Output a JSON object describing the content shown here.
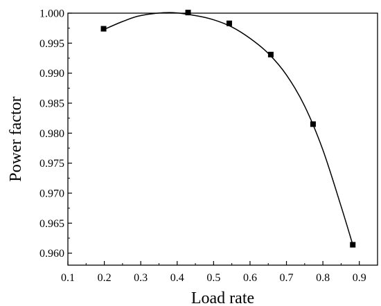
{
  "chart_data": {
    "type": "scatter",
    "title": "",
    "xlabel": "Load rate",
    "ylabel": "Power factor",
    "xlim": [
      0.1,
      0.95
    ],
    "ylim": [
      0.958,
      1.0
    ],
    "grid": false,
    "legend": "none",
    "x_ticks": [
      "0.1",
      "0.2",
      "0.3",
      "0.4",
      "0.5",
      "0.6",
      "0.7",
      "0.8",
      "0.9"
    ],
    "x_tick_values": [
      0.1,
      0.2,
      0.3,
      0.4,
      0.5,
      0.6,
      0.7,
      0.8,
      0.9
    ],
    "y_ticks": [
      "0.960",
      "0.965",
      "0.970",
      "0.975",
      "0.980",
      "0.985",
      "0.990",
      "0.995",
      "1.000"
    ],
    "y_tick_values": [
      0.96,
      0.965,
      0.97,
      0.975,
      0.98,
      0.985,
      0.99,
      0.995,
      1.0
    ],
    "series": [
      {
        "type": "scatter",
        "marker": "square",
        "color": "#000000",
        "points": [
          {
            "x": 0.198,
            "y": 0.9974
          },
          {
            "x": 0.43,
            "y": 1.0001
          },
          {
            "x": 0.543,
            "y": 0.9983
          },
          {
            "x": 0.657,
            "y": 0.9931
          },
          {
            "x": 0.773,
            "y": 0.9815
          },
          {
            "x": 0.882,
            "y": 0.9614
          }
        ]
      },
      {
        "type": "line",
        "style": "smooth-fit",
        "color": "#000000",
        "points": [
          {
            "x": 0.2,
            "y": 0.9973
          },
          {
            "x": 0.25,
            "y": 0.9986
          },
          {
            "x": 0.3,
            "y": 0.9996
          },
          {
            "x": 0.38,
            "y": 1.0001
          },
          {
            "x": 0.45,
            "y": 0.9996
          },
          {
            "x": 0.5,
            "y": 0.9989
          },
          {
            "x": 0.55,
            "y": 0.9977
          },
          {
            "x": 0.6,
            "y": 0.9958
          },
          {
            "x": 0.65,
            "y": 0.9933
          },
          {
            "x": 0.7,
            "y": 0.9897
          },
          {
            "x": 0.75,
            "y": 0.9845
          },
          {
            "x": 0.8,
            "y": 0.9772
          },
          {
            "x": 0.85,
            "y": 0.9678
          },
          {
            "x": 0.882,
            "y": 0.9614
          }
        ]
      }
    ]
  }
}
